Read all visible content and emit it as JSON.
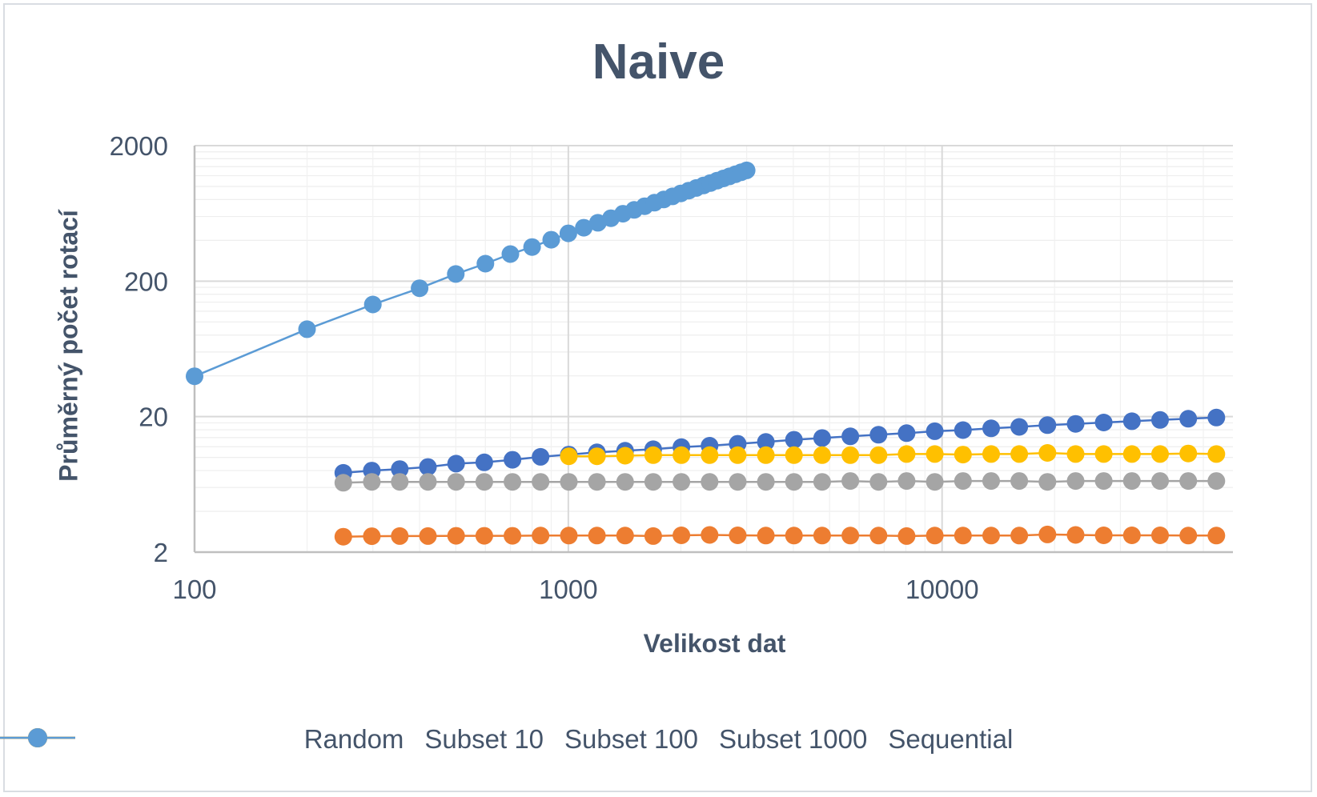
{
  "chart_data": {
    "type": "scatter",
    "title": "Naive",
    "xlabel": "Velikost dat",
    "ylabel": "Průměrný počet rotací",
    "x_scale": "log",
    "y_scale": "log",
    "xlim": [
      100,
      60000
    ],
    "ylim": [
      2,
      2000
    ],
    "x_ticks": [
      100,
      1000,
      10000
    ],
    "x_tick_labels": [
      "100",
      "1000",
      "10000"
    ],
    "y_ticks": [
      2,
      20,
      200,
      2000
    ],
    "y_tick_labels": [
      "2",
      "20",
      "200",
      "2000"
    ],
    "grid": true,
    "legend_position": "bottom",
    "series": [
      {
        "name": "Random",
        "color": "#4472c4",
        "x": [
          250,
          298,
          354,
          421,
          501,
          596,
          709,
          843,
          1003,
          1193,
          1419,
          1687,
          2007,
          2387,
          2839,
          3377,
          4016,
          4777,
          5682,
          6758,
          8038,
          9561,
          11372,
          13526,
          16089,
          19136,
          22761,
          27073,
          32201,
          38301,
          45556,
          54186
        ],
        "y": [
          7.7,
          8.0,
          8.2,
          8.5,
          9.0,
          9.2,
          9.6,
          10.1,
          10.5,
          10.9,
          11.2,
          11.5,
          11.9,
          12.2,
          12.6,
          13.0,
          13.5,
          13.9,
          14.3,
          14.7,
          15.1,
          15.6,
          15.9,
          16.4,
          16.8,
          17.3,
          17.7,
          18.1,
          18.5,
          18.9,
          19.3,
          19.7
        ]
      },
      {
        "name": "Subset 10",
        "color": "#ed7d31",
        "x": [
          250,
          298,
          354,
          421,
          501,
          596,
          709,
          843,
          1003,
          1193,
          1419,
          1687,
          2007,
          2387,
          2839,
          3377,
          4016,
          4777,
          5682,
          6758,
          8038,
          9561,
          11372,
          13526,
          16089,
          19136,
          22761,
          27073,
          32201,
          38301,
          45556,
          54186
        ],
        "y": [
          2.6,
          2.62,
          2.63,
          2.63,
          2.64,
          2.64,
          2.64,
          2.65,
          2.65,
          2.65,
          2.65,
          2.63,
          2.66,
          2.68,
          2.66,
          2.65,
          2.65,
          2.65,
          2.65,
          2.65,
          2.63,
          2.65,
          2.65,
          2.65,
          2.65,
          2.7,
          2.68,
          2.66,
          2.66,
          2.66,
          2.65,
          2.65
        ]
      },
      {
        "name": "Subset 100",
        "color": "#a5a5a5",
        "x": [
          250,
          298,
          354,
          421,
          501,
          596,
          709,
          843,
          1003,
          1193,
          1419,
          1687,
          2007,
          2387,
          2839,
          3377,
          4016,
          4777,
          5682,
          6758,
          8038,
          9561,
          11372,
          13526,
          16089,
          19136,
          22761,
          27073,
          32201,
          38301,
          45556,
          54186
        ],
        "y": [
          6.5,
          6.6,
          6.6,
          6.6,
          6.6,
          6.6,
          6.6,
          6.6,
          6.6,
          6.6,
          6.6,
          6.6,
          6.6,
          6.6,
          6.6,
          6.6,
          6.6,
          6.6,
          6.7,
          6.6,
          6.7,
          6.6,
          6.7,
          6.7,
          6.7,
          6.6,
          6.7,
          6.7,
          6.7,
          6.7,
          6.7,
          6.7
        ]
      },
      {
        "name": "Subset 1000",
        "color": "#ffc000",
        "x": [
          1003,
          1193,
          1419,
          1687,
          2007,
          2387,
          2839,
          3377,
          4016,
          4777,
          5682,
          6758,
          8038,
          9561,
          11372,
          13526,
          16089,
          19136,
          22761,
          27073,
          32201,
          38301,
          45556,
          54186
        ],
        "y": [
          10.2,
          10.2,
          10.3,
          10.4,
          10.4,
          10.4,
          10.4,
          10.4,
          10.4,
          10.4,
          10.4,
          10.4,
          10.6,
          10.6,
          10.5,
          10.6,
          10.6,
          10.8,
          10.6,
          10.6,
          10.6,
          10.6,
          10.7,
          10.6
        ]
      },
      {
        "name": "Sequential",
        "color": "#5b9bd5",
        "x": [
          100,
          200,
          300,
          400,
          500,
          600,
          700,
          800,
          900,
          1000,
          1100,
          1200,
          1300,
          1400,
          1500,
          1600,
          1700,
          1800,
          1900,
          2000,
          2100,
          2200,
          2300,
          2400,
          2500,
          2600,
          2700,
          2800,
          2900,
          3000
        ],
        "y": [
          39.7,
          88.4,
          134.6,
          177.4,
          225.8,
          269.2,
          316.8,
          357.3,
          404.4,
          450.7,
          495.9,
          539.1,
          583.0,
          628.8,
          671.1,
          714.9,
          758.8,
          800.7,
          844.0,
          887.8,
          931.0,
          973.8,
          1016.6,
          1059.3,
          1102.0,
          1144.6,
          1187.1,
          1229.5,
          1271.9,
          1314.2
        ]
      }
    ]
  }
}
